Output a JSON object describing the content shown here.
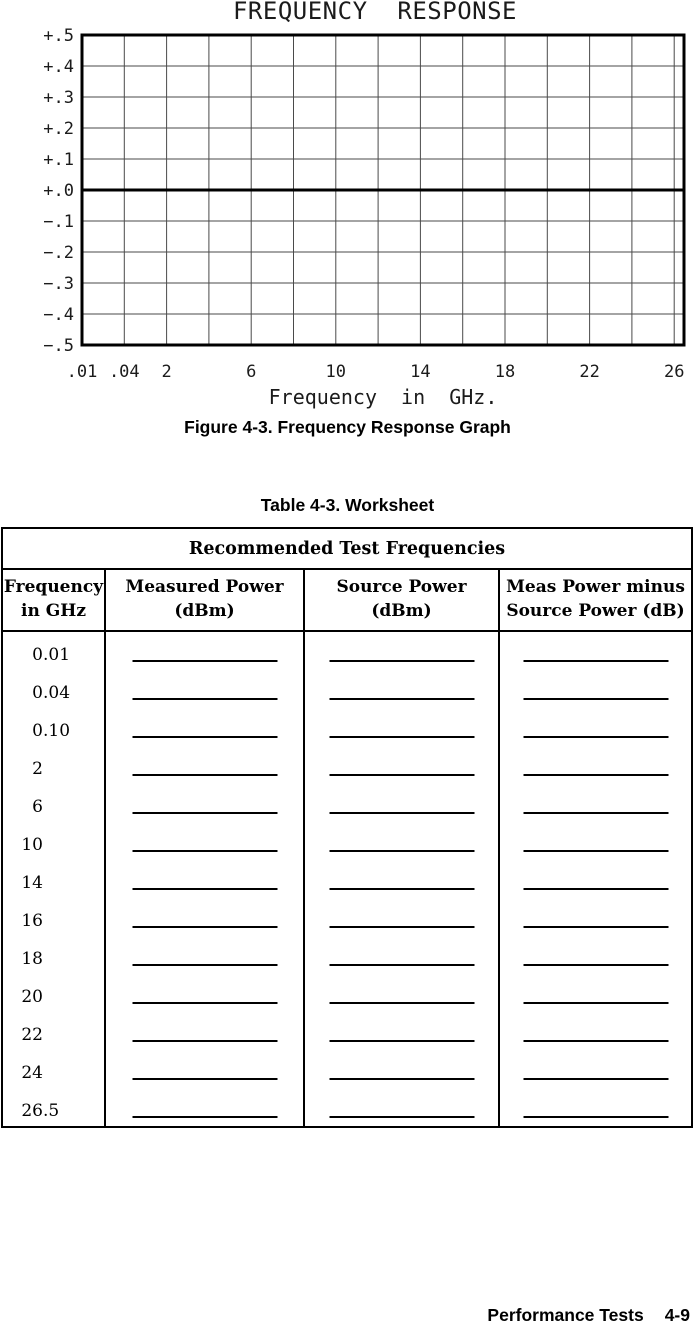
{
  "figure": {
    "title": "FREQUENCY  RESPONSE",
    "caption": "Figure 4-3. Frequency Response Graph",
    "x_axis_label": "Frequency  in  GHz.",
    "chart_data": {
      "type": "line",
      "title": "FREQUENCY RESPONSE",
      "xlabel": "Frequency in GHz.",
      "ylabel": "",
      "ylim": [
        -0.5,
        0.5
      ],
      "y_tick_step": 0.1,
      "y_tick_labels": [
        "+.5",
        "+.4",
        "+.3",
        "+.2",
        "+.1",
        "+.0",
        "−.1",
        "−.2",
        "−.3",
        "−.4",
        "−.5"
      ],
      "x_tick_labels": [
        ".01",
        ".04",
        "2",
        "6",
        "10",
        "14",
        "18",
        "22",
        "26"
      ],
      "x_gridline_values": [
        0.01,
        0.04,
        2,
        4,
        6,
        8,
        10,
        12,
        14,
        16,
        18,
        20,
        22,
        24,
        26,
        26.5
      ],
      "axis_note": "non-linear x-axis: .01 and .04 GHz columns, then 2-26 GHz in 2 GHz steps, right edge 26.5 GHz",
      "grid": true,
      "zero_reference_line": true,
      "series": []
    }
  },
  "table": {
    "caption": "Table 4-3. Worksheet",
    "span_header": "Recommended Test Frequencies",
    "header": [
      {
        "line1": "Frequency",
        "line2": "in GHz"
      },
      {
        "line1": "Measured Power",
        "line2": "(dBm)"
      },
      {
        "line1": "Source Power",
        "line2": "(dBm)"
      },
      {
        "line1": "Meas Power minus",
        "line2": "Source Power (dB)"
      }
    ],
    "rows": [
      {
        "frequency": "0.01",
        "measured_power": "",
        "source_power": "",
        "meas_minus_source": ""
      },
      {
        "frequency": "0.04",
        "measured_power": "",
        "source_power": "",
        "meas_minus_source": ""
      },
      {
        "frequency": "0.10",
        "measured_power": "",
        "source_power": "",
        "meas_minus_source": ""
      },
      {
        "frequency": "2",
        "measured_power": "",
        "source_power": "",
        "meas_minus_source": ""
      },
      {
        "frequency": "6",
        "measured_power": "",
        "source_power": "",
        "meas_minus_source": ""
      },
      {
        "frequency": "10",
        "measured_power": "",
        "source_power": "",
        "meas_minus_source": ""
      },
      {
        "frequency": "14",
        "measured_power": "",
        "source_power": "",
        "meas_minus_source": ""
      },
      {
        "frequency": "16",
        "measured_power": "",
        "source_power": "",
        "meas_minus_source": ""
      },
      {
        "frequency": "18",
        "measured_power": "",
        "source_power": "",
        "meas_minus_source": ""
      },
      {
        "frequency": "20",
        "measured_power": "",
        "source_power": "",
        "meas_minus_source": ""
      },
      {
        "frequency": "22",
        "measured_power": "",
        "source_power": "",
        "meas_minus_source": ""
      },
      {
        "frequency": "24",
        "measured_power": "",
        "source_power": "",
        "meas_minus_source": ""
      },
      {
        "frequency": "26.5",
        "measured_power": "",
        "source_power": "",
        "meas_minus_source": ""
      }
    ]
  },
  "page": {
    "footer": {
      "section": "Performance Tests",
      "page_number": "4-9"
    }
  }
}
